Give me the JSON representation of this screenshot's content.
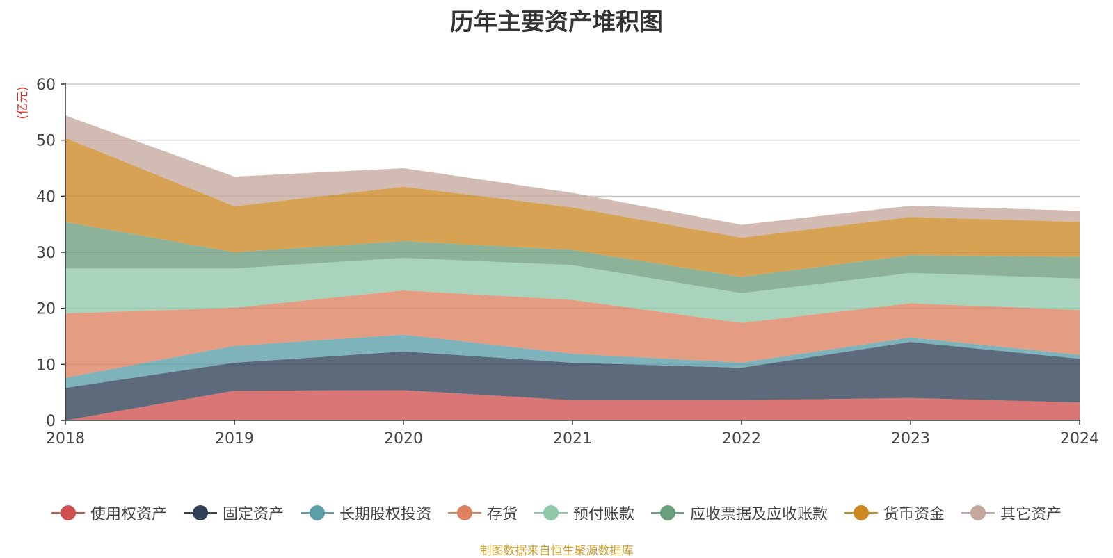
{
  "chart_data": {
    "type": "area",
    "stacked": true,
    "title": "历年主要资产堆积图",
    "ylabel": "(亿元)",
    "xlabel": "",
    "x": [
      "2018",
      "2019",
      "2020",
      "2021",
      "2022",
      "2023",
      "2024"
    ],
    "ylim": [
      0,
      60
    ],
    "yticks": [
      0,
      10,
      20,
      30,
      40,
      50,
      60
    ],
    "grid": true,
    "legend_position": "bottom",
    "series": [
      {
        "name": "使用权资产",
        "color": "#d05050",
        "values": [
          0,
          5.3,
          5.4,
          3.6,
          3.6,
          4.0,
          3.2
        ]
      },
      {
        "name": "固定资产",
        "color": "#2e4057",
        "values": [
          5.8,
          5.0,
          6.9,
          6.7,
          5.8,
          10.0,
          7.8
        ]
      },
      {
        "name": "长期股权投资",
        "color": "#5b9ea8",
        "values": [
          1.8,
          3.0,
          3.0,
          1.6,
          0.9,
          0.8,
          0.7
        ]
      },
      {
        "name": "存货",
        "color": "#dc8060",
        "values": [
          11.5,
          6.8,
          7.9,
          9.6,
          7.1,
          6.1,
          8.0
        ]
      },
      {
        "name": "预付账款",
        "color": "#90c8aa",
        "values": [
          8.0,
          7.0,
          5.8,
          6.2,
          5.3,
          5.4,
          5.6
        ]
      },
      {
        "name": "应收票据及应收账款",
        "color": "#6b9e7d",
        "values": [
          8.3,
          2.9,
          3.0,
          2.7,
          2.9,
          3.2,
          3.9
        ]
      },
      {
        "name": "货币资金",
        "color": "#cc8822",
        "values": [
          15.0,
          8.2,
          9.7,
          7.6,
          7.0,
          6.8,
          6.2
        ]
      },
      {
        "name": "其它资产",
        "color": "#c4a89e",
        "values": [
          4.0,
          5.3,
          3.3,
          2.6,
          2.3,
          2.0,
          2.0
        ]
      }
    ]
  },
  "footer": {
    "source": "制图数据来自恒生聚源数据库"
  }
}
